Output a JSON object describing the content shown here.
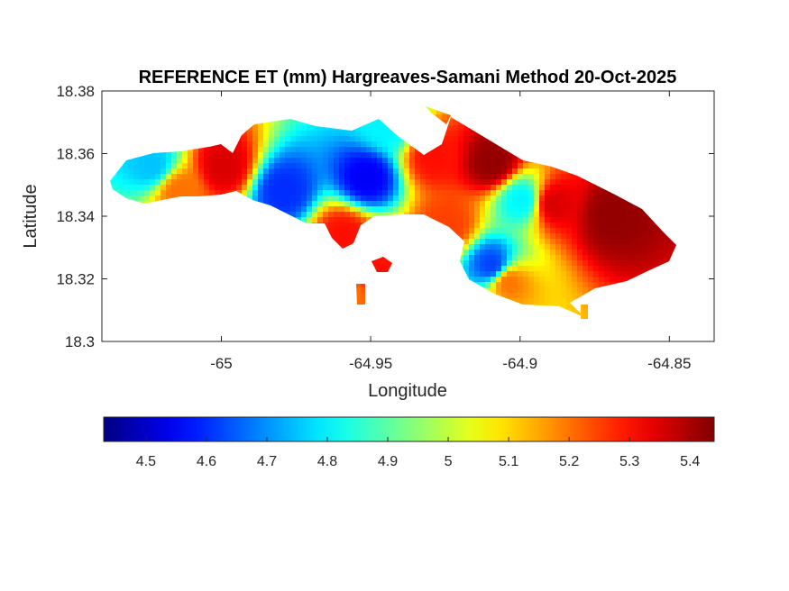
{
  "chart_data": {
    "type": "heatmap",
    "title": "REFERENCE ET (mm) Hargreaves-Samani Method  20-Oct-2025",
    "xlabel": "Longitude",
    "ylabel": "Latitude",
    "xlim": [
      -65.04,
      -64.835
    ],
    "ylim": [
      18.3,
      18.38
    ],
    "x_ticks": [
      -65,
      -64.95,
      -64.9,
      -64.85
    ],
    "x_tick_labels": [
      "-65",
      "-64.95",
      "-64.9",
      "-64.85"
    ],
    "y_ticks": [
      18.3,
      18.32,
      18.34,
      18.36,
      18.38
    ],
    "y_tick_labels": [
      "18.3",
      "18.32",
      "18.34",
      "18.36",
      "18.38"
    ],
    "colorbar": {
      "orientation": "horizontal",
      "location": "below",
      "colormap": "jet",
      "clim": [
        4.43,
        5.44
      ],
      "ticks": [
        4.5,
        4.6,
        4.7,
        4.8,
        4.9,
        5,
        5.1,
        5.2,
        5.3,
        5.4
      ],
      "tick_labels": [
        "4.5",
        "4.6",
        "4.7",
        "4.8",
        "4.9",
        "5",
        "5.1",
        "5.2",
        "5.3",
        "5.4"
      ]
    },
    "grid": false,
    "field_features": [
      {
        "lon": -64.952,
        "lat": 18.353,
        "value": 4.55
      },
      {
        "lon": -64.98,
        "lat": 18.349,
        "value": 4.6
      },
      {
        "lon": -64.91,
        "lat": 18.325,
        "value": 4.62
      },
      {
        "lon": -65.024,
        "lat": 18.357,
        "value": 4.75
      },
      {
        "lon": -64.945,
        "lat": 18.37,
        "value": 4.8
      },
      {
        "lon": -64.9,
        "lat": 18.346,
        "value": 4.8
      },
      {
        "lon": -64.93,
        "lat": 18.36,
        "value": 5.3
      },
      {
        "lon": -64.91,
        "lat": 18.358,
        "value": 5.42
      },
      {
        "lon": -64.87,
        "lat": 18.341,
        "value": 5.42
      },
      {
        "lon": -64.89,
        "lat": 18.345,
        "value": 5.35
      },
      {
        "lon": -65.0,
        "lat": 18.357,
        "value": 5.35
      },
      {
        "lon": -64.96,
        "lat": 18.335,
        "value": 5.3
      },
      {
        "lon": -64.925,
        "lat": 18.338,
        "value": 5.25
      },
      {
        "lon": -64.905,
        "lat": 18.32,
        "value": 5.2
      },
      {
        "lon": -64.95,
        "lat": 18.325,
        "value": 5.3
      },
      {
        "lon": -64.96,
        "lat": 18.316,
        "value": 5.2
      },
      {
        "lon": -65.015,
        "lat": 18.349,
        "value": 5.2
      }
    ]
  }
}
